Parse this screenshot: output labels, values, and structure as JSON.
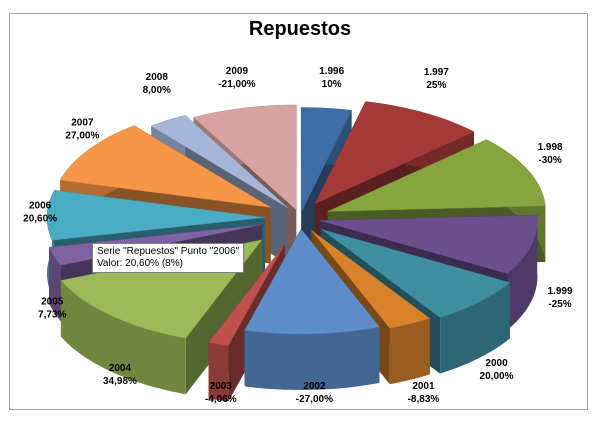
{
  "chart_data": {
    "type": "pie",
    "style": "3d-exploded",
    "title": "Repuestos",
    "series_name": "Repuestos",
    "slices": [
      {
        "label": "1.996",
        "value": 10,
        "display": "10%",
        "color": "#3f6ea5"
      },
      {
        "label": "1.997",
        "value": 25,
        "display": "25%",
        "color": "#a33a39"
      },
      {
        "label": "1.998",
        "value": -30,
        "display": "-30%",
        "color": "#87a53f"
      },
      {
        "label": "1.999",
        "value": -25,
        "display": "-25%",
        "color": "#6c4f8f"
      },
      {
        "label": "2000",
        "value": 20,
        "display": "20,00%",
        "color": "#3f8fa3"
      },
      {
        "label": "2001",
        "value": -8.83,
        "display": "-8,83%",
        "color": "#d9822c"
      },
      {
        "label": "2002",
        "value": -27,
        "display": "-27,00%",
        "color": "#5e8dcb"
      },
      {
        "label": "2003",
        "value": -4.06,
        "display": "-4,06%",
        "color": "#c0504d"
      },
      {
        "label": "2004",
        "value": 34.98,
        "display": "34,98%",
        "color": "#9bbb59"
      },
      {
        "label": "2005",
        "value": 7.73,
        "display": "7,73%",
        "color": "#7e62a1"
      },
      {
        "label": "2006",
        "value": 20.6,
        "display": "20,60%",
        "color": "#4bacc6"
      },
      {
        "label": "2007",
        "value": 27,
        "display": "27,00%",
        "color": "#f79646"
      },
      {
        "label": "2008",
        "value": 8,
        "display": "8,00%",
        "color": "#a5b6d9"
      },
      {
        "label": "2009",
        "value": -21,
        "display": "-21,00%",
        "color": "#d9a3a3"
      }
    ]
  },
  "tooltip": {
    "line1": "Serie \"Repuestos\" Punto \"2006\"",
    "line2": "Valor: 20,60% (8%)"
  }
}
